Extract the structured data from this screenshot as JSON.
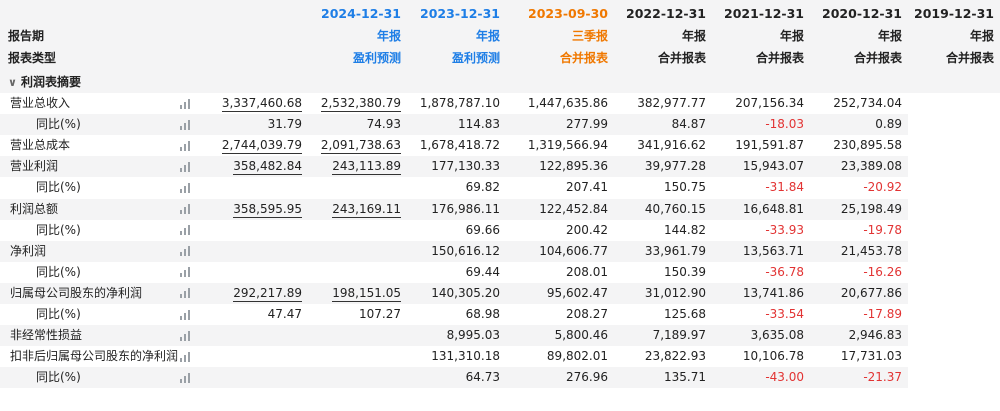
{
  "header": {
    "row_labels": [
      "报告期",
      "报表类型"
    ],
    "columns": [
      {
        "date": "2024-12-31",
        "period": "年报",
        "type": "盈利预测",
        "style": "blue"
      },
      {
        "date": "2023-12-31",
        "period": "年报",
        "type": "盈利预测",
        "style": "blue"
      },
      {
        "date": "2023-09-30",
        "period": "三季报",
        "type": "合并报表",
        "style": "orange"
      },
      {
        "date": "2022-12-31",
        "period": "年报",
        "type": "合并报表",
        "style": "plain"
      },
      {
        "date": "2021-12-31",
        "period": "年报",
        "type": "合并报表",
        "style": "plain"
      },
      {
        "date": "2020-12-31",
        "period": "年报",
        "type": "合并报表",
        "style": "plain"
      },
      {
        "date": "2019-12-31",
        "period": "年报",
        "type": "合并报表",
        "style": "plain"
      }
    ]
  },
  "section": {
    "label": "利润表摘要",
    "chevron": "chevron-down-icon"
  },
  "colors": {
    "accent_blue": "#1e7ee6",
    "accent_orange": "#f07800",
    "negative": "#e23333",
    "header_bg": "#f4f4f5"
  },
  "rows": [
    {
      "label": "营业总收入",
      "sub": false,
      "values": [
        "3,337,460.68",
        "2,532,380.79",
        "1,878,787.10",
        "1,447,635.86",
        "382,977.77",
        "207,156.34",
        "252,734.04"
      ]
    },
    {
      "label": "同比(%)",
      "sub": true,
      "values": [
        "31.79",
        "74.93",
        "114.83",
        "277.99",
        "84.87",
        "-18.03",
        "0.89"
      ]
    },
    {
      "label": "营业总成本",
      "sub": false,
      "values": [
        "2,744,039.79",
        "2,091,738.63",
        "1,678,418.72",
        "1,319,566.94",
        "341,916.62",
        "191,591.87",
        "230,895.58"
      ]
    },
    {
      "label": "营业利润",
      "sub": false,
      "values": [
        "358,482.84",
        "243,113.89",
        "177,130.33",
        "122,895.36",
        "39,977.28",
        "15,943.07",
        "23,389.08"
      ]
    },
    {
      "label": "同比(%)",
      "sub": true,
      "values": [
        "",
        "",
        "69.82",
        "207.41",
        "150.75",
        "-31.84",
        "-20.92"
      ]
    },
    {
      "label": "利润总额",
      "sub": false,
      "values": [
        "358,595.95",
        "243,169.11",
        "176,986.11",
        "122,452.84",
        "40,760.15",
        "16,648.81",
        "25,198.49"
      ]
    },
    {
      "label": "同比(%)",
      "sub": true,
      "values": [
        "",
        "",
        "69.66",
        "200.42",
        "144.82",
        "-33.93",
        "-19.78"
      ]
    },
    {
      "label": "净利润",
      "sub": false,
      "values": [
        "",
        "",
        "150,616.12",
        "104,606.77",
        "33,961.79",
        "13,563.71",
        "21,453.78"
      ]
    },
    {
      "label": "同比(%)",
      "sub": true,
      "values": [
        "",
        "",
        "69.44",
        "208.01",
        "150.39",
        "-36.78",
        "-16.26"
      ]
    },
    {
      "label": "归属母公司股东的净利润",
      "sub": false,
      "values": [
        "292,217.89",
        "198,151.05",
        "140,305.20",
        "95,602.47",
        "31,012.90",
        "13,741.86",
        "20,677.86"
      ]
    },
    {
      "label": "同比(%)",
      "sub": true,
      "values": [
        "47.47",
        "107.27",
        "68.98",
        "208.27",
        "125.68",
        "-33.54",
        "-17.89"
      ]
    },
    {
      "label": "非经常性损益",
      "sub": false,
      "values": [
        "",
        "",
        "8,995.03",
        "5,800.46",
        "7,189.97",
        "3,635.08",
        "2,946.83"
      ]
    },
    {
      "label": "扣非后归属母公司股东的净利润",
      "sub": false,
      "values": [
        "",
        "",
        "131,310.18",
        "89,802.01",
        "23,822.93",
        "10,106.78",
        "17,731.03"
      ]
    },
    {
      "label": "同比(%)",
      "sub": true,
      "values": [
        "",
        "",
        "64.73",
        "276.96",
        "135.71",
        "-43.00",
        "-21.37"
      ]
    }
  ]
}
